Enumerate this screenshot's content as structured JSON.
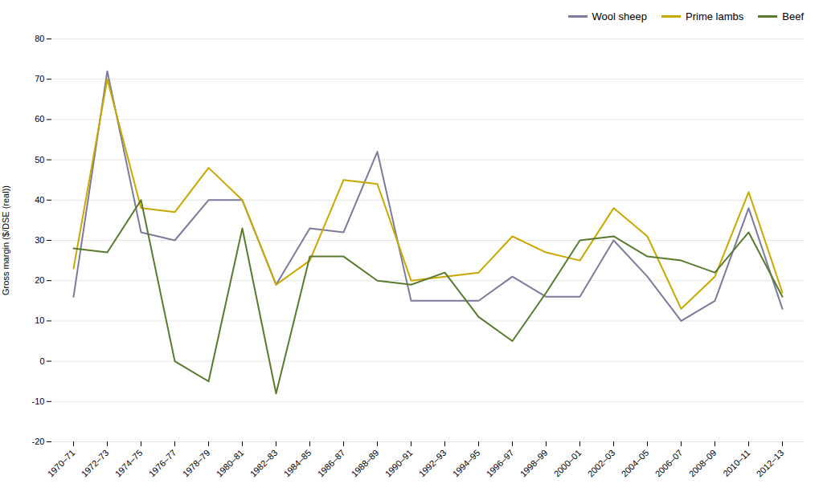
{
  "chart_data": {
    "type": "line",
    "y_label": "Gross margin ($/DSE (real))",
    "categories": [
      "1970–71",
      "1972–73",
      "1974–75",
      "1976–77",
      "1978–79",
      "1980–81",
      "1982–83",
      "1984–85",
      "1986–87",
      "1988–89",
      "1990–91",
      "1992–93",
      "1994–95",
      "1996–97",
      "1998–99",
      "2000–01",
      "2002–03",
      "2004–05",
      "2006–07",
      "2008–09",
      "2010–11",
      "2012–13"
    ],
    "series": [
      {
        "name": "Wool sheep",
        "color": "#7B7B9B",
        "values": [
          16,
          72,
          32,
          30,
          40,
          40,
          19,
          33,
          32,
          52,
          15,
          15,
          15,
          21,
          16,
          16,
          30,
          21,
          10,
          15,
          38,
          13
        ]
      },
      {
        "name": "Prime lambs",
        "color": "#C9A800",
        "values": [
          23,
          70,
          38,
          37,
          48,
          40,
          19,
          25,
          45,
          44,
          20,
          21,
          22,
          31,
          27,
          25,
          38,
          31,
          13,
          21,
          42,
          17
        ]
      },
      {
        "name": "Beef",
        "color": "#5A7A2E",
        "values": [
          28,
          27,
          40,
          0,
          -5,
          33,
          -8,
          26,
          26,
          20,
          19,
          22,
          11,
          5,
          17,
          30,
          31,
          26,
          25,
          22,
          32,
          16
        ]
      }
    ],
    "ylim": [
      -20,
      80
    ],
    "yticks": [
      -20,
      -10,
      0,
      10,
      20,
      30,
      40,
      50,
      60,
      70,
      80
    ],
    "grid": true,
    "legend": "upper right"
  }
}
